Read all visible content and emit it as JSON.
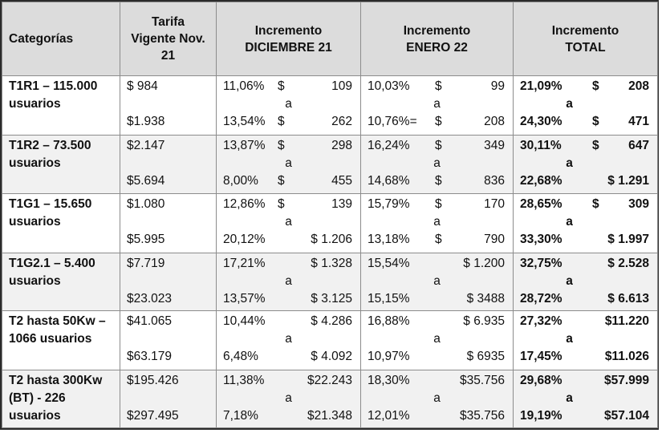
{
  "headers": {
    "categorias": "Categorías",
    "tarifa": "Tarifa Vigente Nov. 21",
    "inc_dic": "Incremento DICIEMBRE 21",
    "inc_ene": "Incremento ENERO 22",
    "inc_total": "Incremento TOTAL"
  },
  "connector": "a",
  "rows": [
    {
      "category": "T1R1 – 115.000 usuarios",
      "tarifa_from": "$ 984",
      "tarifa_to": "$1.938",
      "dic_from_pct": "11,06%",
      "dic_from_cur": "$",
      "dic_from_amt": "109",
      "dic_to_pct": "13,54%",
      "dic_to_cur": "$",
      "dic_to_amt": "262",
      "ene_from_pct": "10,03%",
      "ene_from_cur": "$",
      "ene_from_amt": "99",
      "ene_to_pct": "10,76%=",
      "ene_to_cur": "$",
      "ene_to_amt": "208",
      "tot_from_pct": "21,09%",
      "tot_from_cur": "$",
      "tot_from_amt": "208",
      "tot_to_pct": "24,30%",
      "tot_to_cur": "$",
      "tot_to_amt": "471"
    },
    {
      "category": "T1R2 – 73.500 usuarios",
      "tarifa_from": "$2.147",
      "tarifa_to": "$5.694",
      "dic_from_pct": "13,87%",
      "dic_from_cur": "$",
      "dic_from_amt": "298",
      "dic_to_pct": "8,00%",
      "dic_to_cur": "$",
      "dic_to_amt": "455",
      "ene_from_pct": "16,24%",
      "ene_from_cur": "$",
      "ene_from_amt": "349",
      "ene_to_pct": "14,68%",
      "ene_to_cur": "$",
      "ene_to_amt": "836",
      "tot_from_pct": "30,11%",
      "tot_from_cur": "$",
      "tot_from_amt": "647",
      "tot_to_pct": "22,68%",
      "tot_to_cur": "",
      "tot_to_amt": "$ 1.291"
    },
    {
      "category": "T1G1 – 15.650 usuarios",
      "tarifa_from": "$1.080",
      "tarifa_to": "$5.995",
      "dic_from_pct": "12,86%",
      "dic_from_cur": "$",
      "dic_from_amt": "139",
      "dic_to_pct": "20,12%",
      "dic_to_cur": "",
      "dic_to_amt": "$ 1.206",
      "ene_from_pct": "15,79%",
      "ene_from_cur": "$",
      "ene_from_amt": "170",
      "ene_to_pct": "13,18%",
      "ene_to_cur": "$",
      "ene_to_amt": "790",
      "tot_from_pct": "28,65%",
      "tot_from_cur": "$",
      "tot_from_amt": "309",
      "tot_to_pct": "33,30%",
      "tot_to_cur": "",
      "tot_to_amt": "$ 1.997"
    },
    {
      "category": "T1G2.1 – 5.400 usuarios",
      "tarifa_from": "$7.719",
      "tarifa_to": "$23.023",
      "dic_from_pct": "17,21%",
      "dic_from_cur": "",
      "dic_from_amt": "$ 1.328",
      "dic_to_pct": "13,57%",
      "dic_to_cur": "",
      "dic_to_amt": "$ 3.125",
      "ene_from_pct": "15,54%",
      "ene_from_cur": "",
      "ene_from_amt": "$ 1.200",
      "ene_to_pct": "15,15%",
      "ene_to_cur": "",
      "ene_to_amt": "$ 3488",
      "tot_from_pct": "32,75%",
      "tot_from_cur": "",
      "tot_from_amt": "$ 2.528",
      "tot_to_pct": "28,72%",
      "tot_to_cur": "",
      "tot_to_amt": "$ 6.613"
    },
    {
      "category": "T2 hasta 50Kw – 1066 usuarios",
      "tarifa_from": "$41.065",
      "tarifa_to": "$63.179",
      "dic_from_pct": "10,44%",
      "dic_from_cur": "",
      "dic_from_amt": "$ 4.286",
      "dic_to_pct": "6,48%",
      "dic_to_cur": "",
      "dic_to_amt": "$ 4.092",
      "ene_from_pct": "16,88%",
      "ene_from_cur": "",
      "ene_from_amt": "$ 6.935",
      "ene_to_pct": "10,97%",
      "ene_to_cur": "",
      "ene_to_amt": "$ 6935",
      "tot_from_pct": "27,32%",
      "tot_from_cur": "",
      "tot_from_amt": "$11.220",
      "tot_to_pct": "17,45%",
      "tot_to_cur": "",
      "tot_to_amt": "$11.026"
    },
    {
      "category": "T2 hasta 300Kw (BT) - 226 usuarios",
      "tarifa_from": "$195.426",
      "tarifa_to": "$297.495",
      "dic_from_pct": "11,38%",
      "dic_from_cur": "",
      "dic_from_amt": "$22.243",
      "dic_to_pct": "7,18%",
      "dic_to_cur": "",
      "dic_to_amt": "$21.348",
      "ene_from_pct": "18,30%",
      "ene_from_cur": "",
      "ene_from_amt": "$35.756",
      "ene_to_pct": "12,01%",
      "ene_to_cur": "",
      "ene_to_amt": "$35.756",
      "tot_from_pct": "29,68%",
      "tot_from_cur": "",
      "tot_from_amt": "$57.999",
      "tot_to_pct": "19,19%",
      "tot_to_cur": "",
      "tot_to_amt": "$57.104"
    }
  ],
  "colors": {
    "header_bg": "#dcdcdc",
    "row_alt_bg": "#f1f1f1",
    "grid": "#8c8c8c",
    "outer_border": "#2b2b2b"
  }
}
